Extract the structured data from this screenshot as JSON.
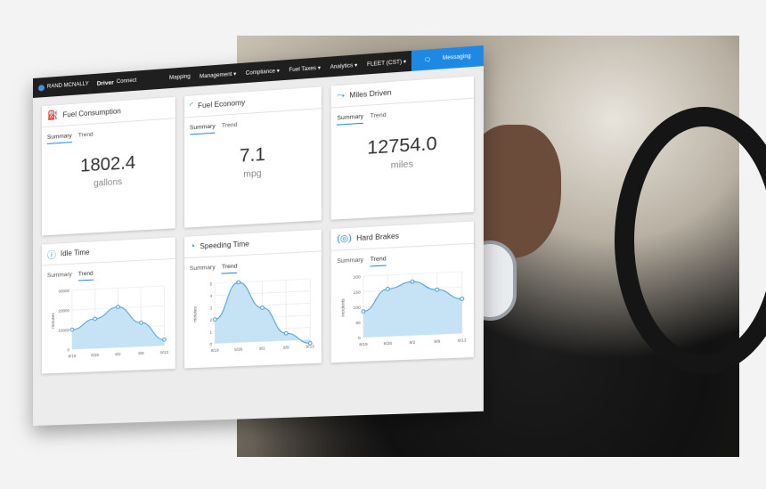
{
  "nav": {
    "brand": "RAND MCNALLY",
    "product_bold": "Driver",
    "product_rest": "Connect",
    "items": [
      "Mapping",
      "Management ▾",
      "Compliance ▾",
      "Fuel Taxes ▾",
      "Analytics ▾",
      "FLEET (CST) ▾"
    ],
    "messaging": "Messaging"
  },
  "tabs": {
    "summary": "Summary",
    "trend": "Trend"
  },
  "summary_cards": [
    {
      "title": "Fuel Consumption",
      "icon": "fuel-pump-icon",
      "value": "1802.4",
      "unit": "gallons"
    },
    {
      "title": "Fuel Economy",
      "icon": "gauge-icon",
      "value": "7.1",
      "unit": "mpg"
    },
    {
      "title": "Miles Driven",
      "icon": "route-icon",
      "value": "12754.0",
      "unit": "miles"
    }
  ],
  "accent": "#1e88e5",
  "chart_data": [
    {
      "type": "area",
      "title": "Idle Time",
      "icon": "alert-circle-icon",
      "ylabel": "minutes",
      "categories": [
        "8/19",
        "8/26",
        "9/2",
        "9/9",
        "9/13"
      ],
      "values": [
        10000,
        15000,
        20500,
        12000,
        3000
      ],
      "ylim": [
        0,
        30000
      ],
      "yticks": [
        0,
        10000,
        20000,
        30000
      ],
      "grid": true
    },
    {
      "type": "area",
      "title": "Speeding Time",
      "icon": "speedometer-icon",
      "ylabel": "minutes",
      "categories": [
        "8/19",
        "8/26",
        "9/2",
        "9/9",
        "9/13"
      ],
      "values": [
        2,
        5,
        2.8,
        0.6,
        -0.3
      ],
      "ylim": [
        0,
        5
      ],
      "yticks": [
        0,
        1,
        2,
        3,
        4,
        5
      ],
      "grid": true
    },
    {
      "type": "area",
      "title": "Hard Brakes",
      "icon": "brake-icon",
      "ylabel": "incidents",
      "categories": [
        "8/19",
        "8/26",
        "9/2",
        "9/9",
        "9/13"
      ],
      "values": [
        85,
        155,
        175,
        145,
        112
      ],
      "ylim": [
        0,
        200
      ],
      "yticks": [
        0,
        50,
        100,
        150,
        200
      ],
      "grid": true
    }
  ]
}
